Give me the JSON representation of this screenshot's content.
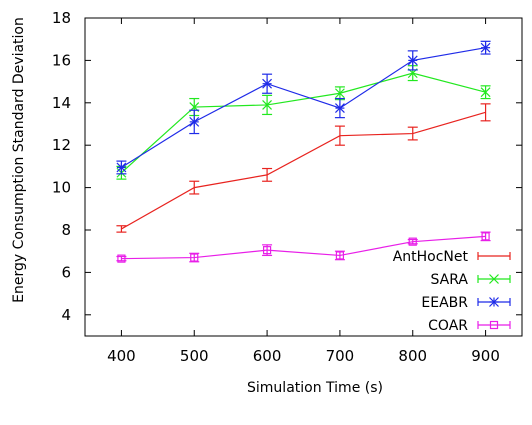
{
  "chart_data": {
    "type": "line",
    "xlabel": "Simulation Time (s)",
    "ylabel": "Energy Consumption Standard Deviation",
    "xlim": [
      350,
      950
    ],
    "ylim": [
      3,
      18
    ],
    "x_ticks": [
      400,
      500,
      600,
      700,
      800,
      900
    ],
    "y_ticks": [
      4,
      6,
      8,
      10,
      12,
      14,
      16,
      18
    ],
    "grid": false,
    "legend_position": "bottom-right",
    "x": [
      400,
      500,
      600,
      700,
      800,
      900
    ],
    "series": [
      {
        "name": "AntHocNet",
        "color": "#e8231f",
        "marker": "none",
        "values": [
          8.05,
          10.0,
          10.6,
          12.45,
          12.55,
          13.55
        ],
        "errors": [
          0.15,
          0.3,
          0.3,
          0.45,
          0.3,
          0.4
        ]
      },
      {
        "name": "SARA",
        "color": "#22e81f",
        "marker": "x",
        "values": [
          10.7,
          13.8,
          13.9,
          14.45,
          15.4,
          14.5
        ],
        "errors": [
          0.3,
          0.4,
          0.45,
          0.3,
          0.35,
          0.3
        ]
      },
      {
        "name": "EEABR",
        "color": "#1f2be8",
        "marker": "star",
        "values": [
          10.95,
          13.1,
          14.9,
          13.75,
          16.0,
          16.6
        ],
        "errors": [
          0.3,
          0.55,
          0.45,
          0.45,
          0.45,
          0.3
        ]
      },
      {
        "name": "COAR",
        "color": "#e81fe8",
        "marker": "square",
        "values": [
          6.65,
          6.7,
          7.05,
          6.8,
          7.45,
          7.7
        ],
        "errors": [
          0.1,
          0.2,
          0.25,
          0.2,
          0.1,
          0.2
        ]
      }
    ]
  }
}
